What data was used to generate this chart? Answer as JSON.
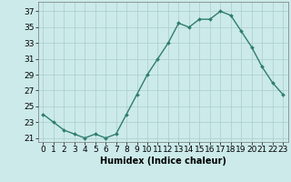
{
  "x": [
    0,
    1,
    2,
    3,
    4,
    5,
    6,
    7,
    8,
    9,
    10,
    11,
    12,
    13,
    14,
    15,
    16,
    17,
    18,
    19,
    20,
    21,
    22,
    23
  ],
  "y": [
    24.0,
    23.0,
    22.0,
    21.5,
    21.0,
    21.5,
    21.0,
    21.5,
    24.0,
    26.5,
    29.0,
    31.0,
    33.0,
    35.5,
    35.0,
    36.0,
    36.0,
    37.0,
    36.5,
    34.5,
    32.5,
    30.0,
    28.0,
    26.5
  ],
  "line_color": "#2e7d6e",
  "marker": "D",
  "marker_size": 2.0,
  "bg_color": "#cceaea",
  "grid_color": "#aacccc",
  "xlabel": "Humidex (Indice chaleur)",
  "xlim": [
    -0.5,
    23.5
  ],
  "ylim": [
    20.5,
    38.2
  ],
  "yticks": [
    21,
    23,
    25,
    27,
    29,
    31,
    33,
    35,
    37
  ],
  "xtick_labels": [
    "0",
    "1",
    "2",
    "3",
    "4",
    "5",
    "6",
    "7",
    "8",
    "9",
    "10",
    "11",
    "12",
    "13",
    "14",
    "15",
    "16",
    "17",
    "18",
    "19",
    "20",
    "21",
    "22",
    "23"
  ],
  "xlabel_fontsize": 7,
  "tick_fontsize": 6.5,
  "line_width": 1.0
}
